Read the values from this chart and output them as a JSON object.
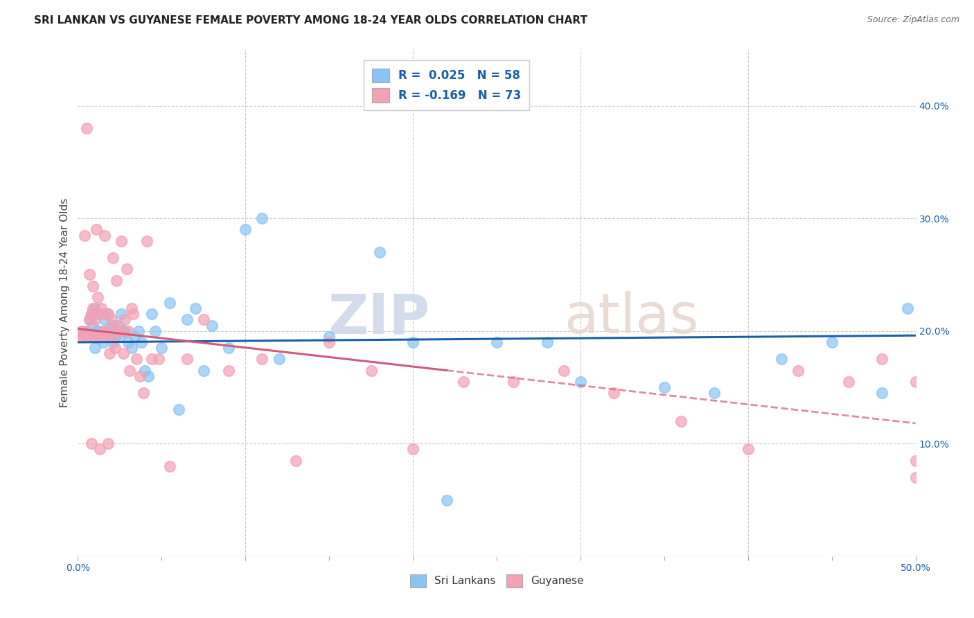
{
  "title": "SRI LANKAN VS GUYANESE FEMALE POVERTY AMONG 18-24 YEAR OLDS CORRELATION CHART",
  "source": "Source: ZipAtlas.com",
  "ylabel": "Female Poverty Among 18-24 Year Olds",
  "xlim": [
    0.0,
    0.5
  ],
  "ylim": [
    0.0,
    0.45
  ],
  "xticks": [
    0.0,
    0.1,
    0.2,
    0.3,
    0.4,
    0.5
  ],
  "xticklabels": [
    "0.0%",
    "",
    "",
    "",
    "",
    "50.0%"
  ],
  "yticks_right": [
    0.1,
    0.2,
    0.3,
    0.4
  ],
  "yticklabels_right": [
    "10.0%",
    "20.0%",
    "30.0%",
    "40.0%"
  ],
  "sri_lankan_color": "#89c4f4",
  "guyanese_color": "#f4a0b5",
  "sri_lankan_line_color": "#1a5fa8",
  "guyanese_line_color": "#d45a7a",
  "legend_r_sri": "0.025",
  "legend_n_sri": "58",
  "legend_r_guy": "-0.169",
  "legend_n_guy": "73",
  "watermark_zip": "ZIP",
  "watermark_atlas": "atlas",
  "background_color": "#ffffff",
  "grid_color": "#cccccc",
  "sri_lankans_x": [
    0.003,
    0.005,
    0.007,
    0.008,
    0.009,
    0.01,
    0.01,
    0.011,
    0.012,
    0.013,
    0.014,
    0.015,
    0.016,
    0.017,
    0.018,
    0.019,
    0.02,
    0.021,
    0.022,
    0.023,
    0.024,
    0.025,
    0.026,
    0.027,
    0.028,
    0.03,
    0.032,
    0.034,
    0.036,
    0.038,
    0.04,
    0.042,
    0.044,
    0.046,
    0.05,
    0.055,
    0.06,
    0.065,
    0.07,
    0.075,
    0.08,
    0.09,
    0.1,
    0.11,
    0.12,
    0.15,
    0.18,
    0.2,
    0.22,
    0.25,
    0.28,
    0.3,
    0.35,
    0.38,
    0.42,
    0.45,
    0.48,
    0.495
  ],
  "sri_lankans_y": [
    0.2,
    0.195,
    0.21,
    0.215,
    0.205,
    0.22,
    0.185,
    0.2,
    0.215,
    0.2,
    0.195,
    0.19,
    0.21,
    0.2,
    0.215,
    0.195,
    0.205,
    0.19,
    0.195,
    0.2,
    0.205,
    0.195,
    0.215,
    0.2,
    0.2,
    0.19,
    0.185,
    0.195,
    0.2,
    0.19,
    0.165,
    0.16,
    0.215,
    0.2,
    0.185,
    0.225,
    0.13,
    0.21,
    0.22,
    0.165,
    0.205,
    0.185,
    0.29,
    0.3,
    0.175,
    0.195,
    0.27,
    0.19,
    0.05,
    0.19,
    0.19,
    0.155,
    0.15,
    0.145,
    0.175,
    0.19,
    0.145,
    0.22
  ],
  "guyanese_x": [
    0.001,
    0.002,
    0.003,
    0.004,
    0.005,
    0.005,
    0.006,
    0.007,
    0.007,
    0.008,
    0.008,
    0.009,
    0.009,
    0.01,
    0.01,
    0.011,
    0.011,
    0.012,
    0.012,
    0.013,
    0.013,
    0.014,
    0.015,
    0.015,
    0.016,
    0.016,
    0.017,
    0.018,
    0.018,
    0.019,
    0.02,
    0.02,
    0.021,
    0.022,
    0.022,
    0.023,
    0.024,
    0.025,
    0.026,
    0.027,
    0.028,
    0.029,
    0.03,
    0.031,
    0.032,
    0.033,
    0.035,
    0.037,
    0.039,
    0.041,
    0.044,
    0.048,
    0.055,
    0.065,
    0.075,
    0.09,
    0.11,
    0.13,
    0.15,
    0.175,
    0.2,
    0.23,
    0.26,
    0.29,
    0.32,
    0.36,
    0.4,
    0.43,
    0.46,
    0.48,
    0.5,
    0.5,
    0.5
  ],
  "guyanese_y": [
    0.195,
    0.2,
    0.195,
    0.285,
    0.2,
    0.38,
    0.195,
    0.25,
    0.21,
    0.215,
    0.1,
    0.22,
    0.24,
    0.195,
    0.21,
    0.29,
    0.195,
    0.195,
    0.23,
    0.095,
    0.195,
    0.22,
    0.215,
    0.2,
    0.2,
    0.285,
    0.195,
    0.1,
    0.215,
    0.18,
    0.21,
    0.195,
    0.265,
    0.205,
    0.185,
    0.245,
    0.2,
    0.2,
    0.28,
    0.18,
    0.21,
    0.255,
    0.2,
    0.165,
    0.22,
    0.215,
    0.175,
    0.16,
    0.145,
    0.28,
    0.175,
    0.175,
    0.08,
    0.175,
    0.21,
    0.165,
    0.175,
    0.085,
    0.19,
    0.165,
    0.095,
    0.155,
    0.155,
    0.165,
    0.145,
    0.12,
    0.095,
    0.165,
    0.155,
    0.175,
    0.155,
    0.085,
    0.07
  ],
  "sri_trendline_start_y": 0.19,
  "sri_trendline_end_y": 0.196,
  "guy_trendline_start_y": 0.202,
  "guy_trendline_end_y": 0.118
}
